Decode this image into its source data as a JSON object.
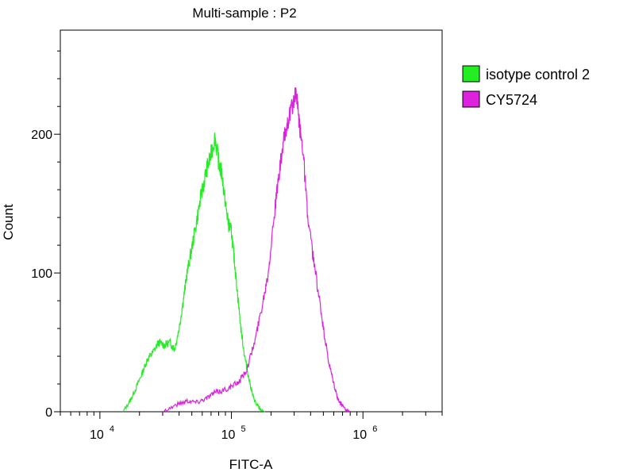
{
  "chart_data": {
    "type": "line",
    "title": "Multi-sample : P2",
    "xlabel": "FITC-A",
    "ylabel": "Count",
    "x_scale": "log",
    "xlim": [
      5000,
      4000000
    ],
    "ylim": [
      0,
      275
    ],
    "x_ticks": [
      {
        "value": 10000,
        "base": "10",
        "exp": "4"
      },
      {
        "value": 100000,
        "base": "10",
        "exp": "5"
      },
      {
        "value": 1000000,
        "base": "10",
        "exp": "6"
      }
    ],
    "y_ticks": [
      {
        "value": 0,
        "label": "0"
      },
      {
        "value": 100,
        "label": "100"
      },
      {
        "value": 200,
        "label": "200"
      }
    ],
    "legend_position": "right",
    "series": [
      {
        "name": "isotype control 2",
        "color": "#22ee22",
        "x": [
          15000,
          17000,
          19000,
          21000,
          23000,
          25000,
          28000,
          31000,
          34000,
          37000,
          40000,
          43000,
          46000,
          50000,
          55000,
          60000,
          65000,
          70000,
          75000,
          80000,
          85000,
          90000,
          95000,
          100000,
          105000,
          110000,
          118000,
          126000,
          135000,
          145000,
          155000,
          165000,
          180000
        ],
        "y": [
          0,
          8,
          18,
          28,
          38,
          42,
          50,
          48,
          50,
          45,
          60,
          80,
          100,
          118,
          140,
          160,
          175,
          185,
          198,
          180,
          170,
          150,
          135,
          130,
          110,
          90,
          60,
          40,
          25,
          12,
          5,
          2,
          0
        ]
      },
      {
        "name": "CY5724",
        "color": "#dd22dd",
        "x": [
          30000,
          38000,
          46000,
          55000,
          65000,
          75000,
          85000,
          100000,
          115000,
          130000,
          150000,
          170000,
          190000,
          210000,
          230000,
          250000,
          270000,
          290000,
          310000,
          330000,
          350000,
          380000,
          420000,
          460000,
          500000,
          550000,
          600000,
          650000,
          720000,
          800000
        ],
        "y": [
          0,
          5,
          8,
          7,
          10,
          14,
          15,
          18,
          22,
          30,
          50,
          75,
          100,
          140,
          170,
          195,
          210,
          220,
          230,
          205,
          190,
          140,
          110,
          85,
          60,
          35,
          20,
          8,
          3,
          0
        ]
      }
    ]
  }
}
